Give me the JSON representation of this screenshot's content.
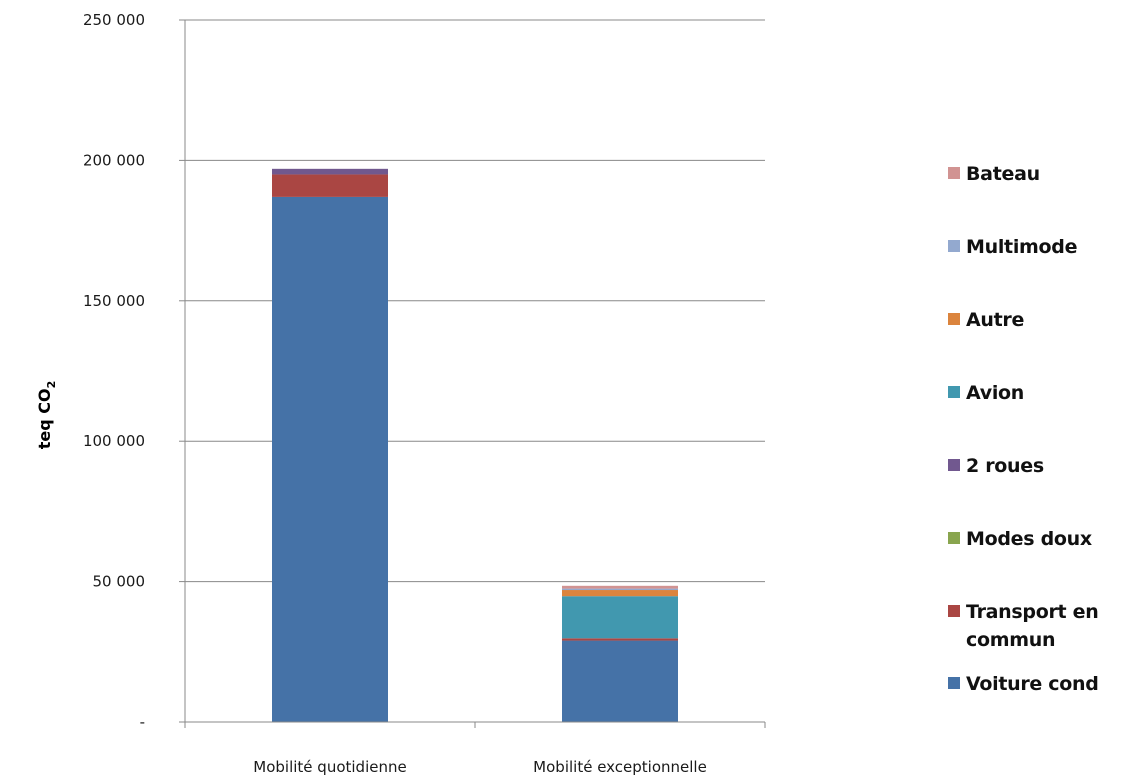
{
  "chart_data": {
    "type": "bar",
    "stacked": true,
    "categories": [
      "Mobilité quotidienne",
      "Mobilité exceptionnelle"
    ],
    "ylabel_main": "teq CO",
    "ylabel_sub": "2",
    "ylim": [
      0,
      250000
    ],
    "yticks": [
      {
        "value": 0,
        "label": "-"
      },
      {
        "value": 50000,
        "label": "50 000"
      },
      {
        "value": 100000,
        "label": "100 000"
      },
      {
        "value": 150000,
        "label": "150 000"
      },
      {
        "value": 200000,
        "label": "200 000"
      },
      {
        "value": 250000,
        "label": "250 000"
      }
    ],
    "grid": true,
    "legend_position": "right",
    "series": [
      {
        "name": "Voiture cond",
        "color": "#4572A7",
        "values": [
          187000,
          29000
        ]
      },
      {
        "name": "Transport en commun",
        "color": "#AA4643",
        "values": [
          8000,
          800
        ]
      },
      {
        "name": "Modes doux",
        "color": "#89A54E",
        "values": [
          0,
          0
        ]
      },
      {
        "name": "2 roues",
        "color": "#71588F",
        "values": [
          2000,
          0
        ]
      },
      {
        "name": "Avion",
        "color": "#4198AF",
        "values": [
          0,
          15000
        ]
      },
      {
        "name": "Autre",
        "color": "#DB843D",
        "values": [
          0,
          2200
        ]
      },
      {
        "name": "Multimode",
        "color": "#93A9CF",
        "values": [
          0,
          500
        ]
      },
      {
        "name": "Bateau",
        "color": "#D19392",
        "values": [
          0,
          1000
        ]
      }
    ]
  }
}
